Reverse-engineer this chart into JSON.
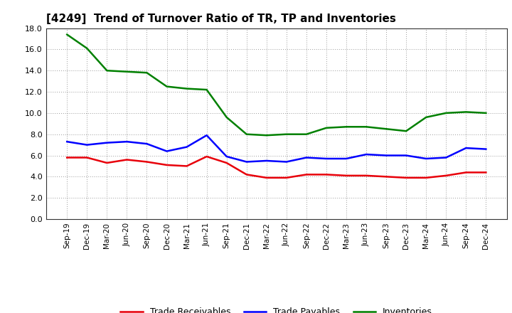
{
  "title": "[4249]  Trend of Turnover Ratio of TR, TP and Inventories",
  "xlabels": [
    "Sep-19",
    "Dec-19",
    "Mar-20",
    "Jun-20",
    "Sep-20",
    "Dec-20",
    "Mar-21",
    "Jun-21",
    "Sep-21",
    "Dec-21",
    "Mar-22",
    "Jun-22",
    "Sep-22",
    "Dec-22",
    "Mar-23",
    "Jun-23",
    "Sep-23",
    "Dec-23",
    "Mar-24",
    "Jun-24",
    "Sep-24",
    "Dec-24"
  ],
  "trade_receivables": [
    5.8,
    5.8,
    5.3,
    5.6,
    5.4,
    5.1,
    5.0,
    5.9,
    5.3,
    4.2,
    3.9,
    3.9,
    4.2,
    4.2,
    4.1,
    4.1,
    4.0,
    3.9,
    3.9,
    4.1,
    4.4,
    4.4
  ],
  "trade_payables": [
    7.3,
    7.0,
    7.2,
    7.3,
    7.1,
    6.4,
    6.8,
    7.9,
    5.9,
    5.4,
    5.5,
    5.4,
    5.8,
    5.7,
    5.7,
    6.1,
    6.0,
    6.0,
    5.7,
    5.8,
    6.7,
    6.6
  ],
  "inventories": [
    17.4,
    16.1,
    14.0,
    13.9,
    13.8,
    12.5,
    12.3,
    12.2,
    9.6,
    8.0,
    7.9,
    8.0,
    8.0,
    8.6,
    8.7,
    8.7,
    8.5,
    8.3,
    9.6,
    10.0,
    10.1,
    10.0
  ],
  "color_tr": "#e8000a",
  "color_tp": "#0000ff",
  "color_inv": "#008000",
  "ylim": [
    0,
    18.0
  ],
  "yticks": [
    0.0,
    2.0,
    4.0,
    6.0,
    8.0,
    10.0,
    12.0,
    14.0,
    16.0,
    18.0
  ],
  "legend_labels": [
    "Trade Receivables",
    "Trade Payables",
    "Inventories"
  ],
  "bg_color": "#ffffff",
  "plot_bg_color": "#ffffff",
  "grid_color": "#999999",
  "linewidth": 1.8,
  "title_fontsize": 11
}
